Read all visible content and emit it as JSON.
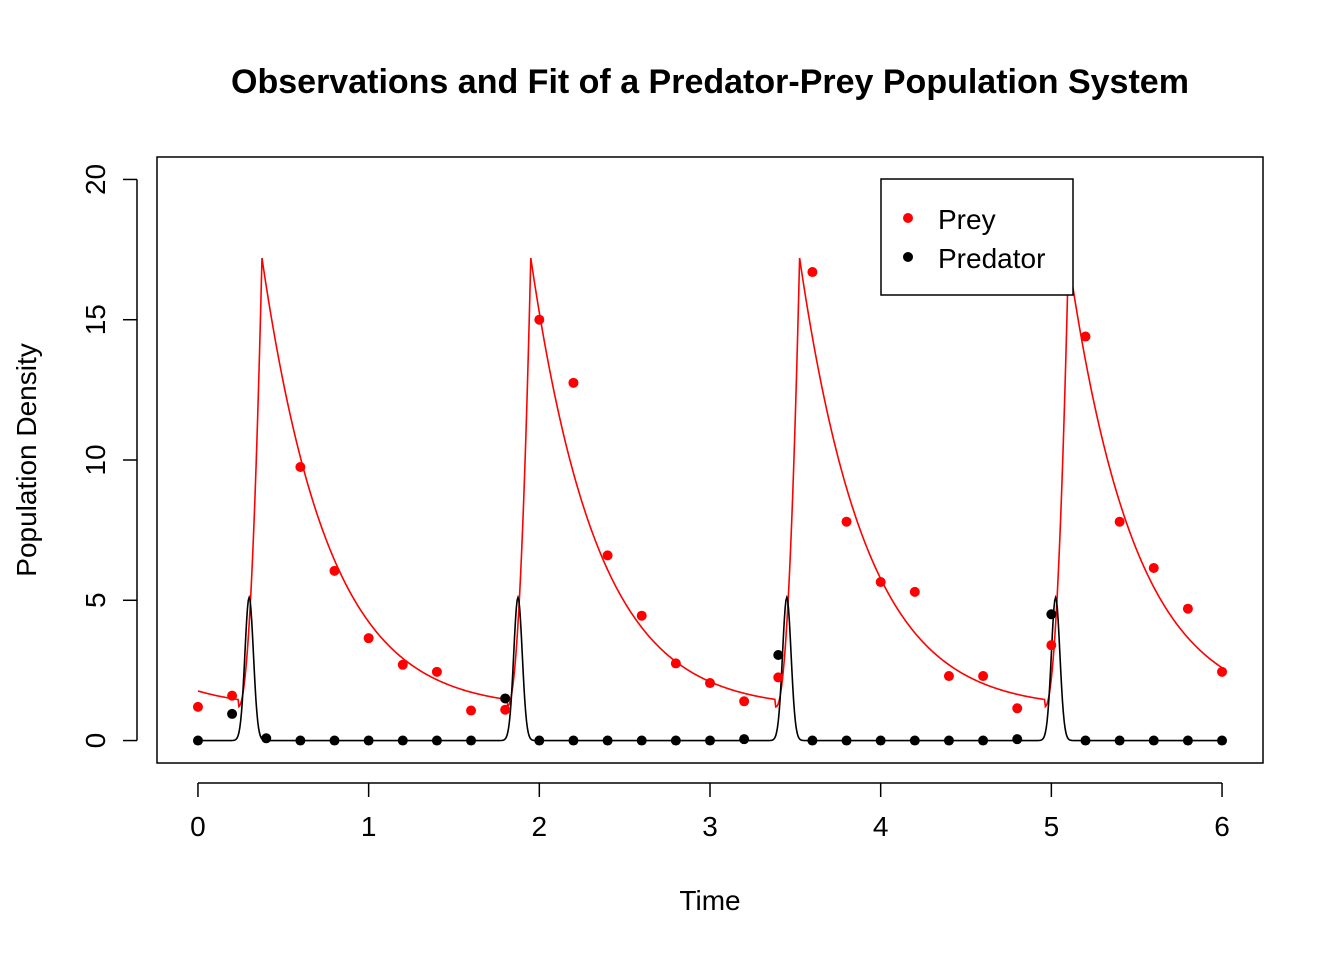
{
  "chart_data": {
    "type": "scatter",
    "title": "Observations and Fit of a Predator-Prey Population System",
    "xlabel": "Time",
    "ylabel": "Population Density",
    "xlim": [
      -0.24,
      6.24
    ],
    "ylim": [
      -0.8,
      20.8
    ],
    "x_ticks": [
      "0",
      "1",
      "2",
      "3",
      "4",
      "5",
      "6"
    ],
    "y_ticks": [
      "0",
      "5",
      "10",
      "15",
      "20"
    ],
    "grid": false,
    "legend_position": "top-right",
    "series": [
      {
        "name": "Prey",
        "color": "#ff0000",
        "x": [
          0,
          0.2,
          0.6,
          0.8,
          1.0,
          1.2,
          1.4,
          1.6,
          1.8,
          2.0,
          2.2,
          2.4,
          2.6,
          2.8,
          3.0,
          3.2,
          3.4,
          3.6,
          3.8,
          4.0,
          4.2,
          4.4,
          4.6,
          4.8,
          5.0,
          5.2,
          5.4,
          5.6,
          5.8,
          6.0
        ],
        "y": [
          1.2,
          1.6,
          9.75,
          6.05,
          3.65,
          2.7,
          2.45,
          1.07,
          1.1,
          15.0,
          12.75,
          6.6,
          4.45,
          2.75,
          2.05,
          1.4,
          2.25,
          16.7,
          7.8,
          5.65,
          5.3,
          2.3,
          2.3,
          1.15,
          3.4,
          14.4,
          7.8,
          6.15,
          4.7,
          2.45
        ]
      },
      {
        "name": "Predator",
        "color": "#000000",
        "x": [
          0,
          0.2,
          0.4,
          0.6,
          0.8,
          1.0,
          1.2,
          1.4,
          1.6,
          1.8,
          2.0,
          2.2,
          2.4,
          2.6,
          2.8,
          3.0,
          3.2,
          3.4,
          3.6,
          3.8,
          4.0,
          4.2,
          4.4,
          4.6,
          4.8,
          5.0,
          5.2,
          5.4,
          5.6,
          5.8,
          6.0
        ],
        "y": [
          0.0,
          0.95,
          0.08,
          0.0,
          0.0,
          0.0,
          0.0,
          0.0,
          0.0,
          1.5,
          0.0,
          0.0,
          0.0,
          0.0,
          0.0,
          0.0,
          0.05,
          3.05,
          0.0,
          0.0,
          0.0,
          0.0,
          0.0,
          0.0,
          0.05,
          4.5,
          0.0,
          0.0,
          0.0,
          0.0,
          0.0
        ]
      }
    ]
  }
}
